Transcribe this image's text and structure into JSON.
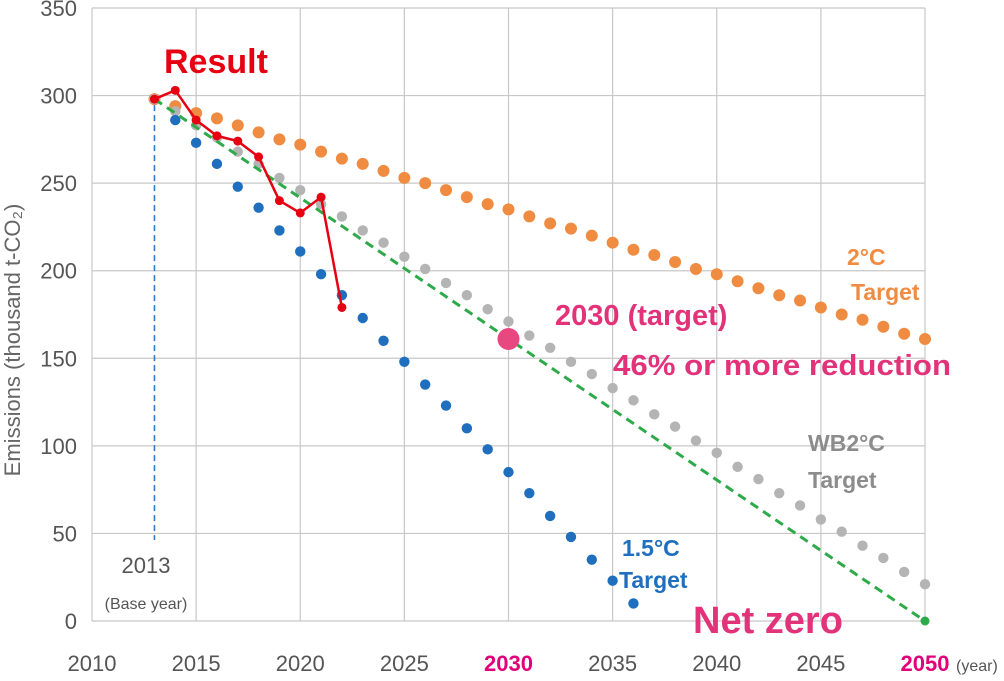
{
  "chart_data": {
    "type": "line",
    "ylabel": "Emissions (thousand t-CO₂)",
    "x_unit": "(year)",
    "xlim": [
      2010,
      2050
    ],
    "ylim": [
      0,
      350
    ],
    "x_ticks": [
      "2010",
      "2015",
      "2020",
      "2025",
      "2030",
      "2035",
      "2040",
      "2045",
      "2050"
    ],
    "x_ticks_highlighted": [
      "2030",
      "2050"
    ],
    "y_ticks": [
      "0",
      "50",
      "100",
      "150",
      "200",
      "250",
      "300",
      "350"
    ],
    "grid": "vertical and horizontal",
    "series": [
      {
        "name": "Result",
        "color": "#e60012",
        "style": "solid line with markers",
        "x": [
          2013,
          2014,
          2015,
          2016,
          2017,
          2018,
          2019,
          2020,
          2021,
          2022
        ],
        "y": [
          298,
          303,
          286,
          277,
          274,
          265,
          240,
          233,
          242,
          179
        ]
      },
      {
        "name": "2°C Target",
        "color": "#f08c42",
        "style": "dotted",
        "x": [
          2013,
          2014,
          2015,
          2016,
          2017,
          2018,
          2019,
          2020,
          2021,
          2022,
          2023,
          2024,
          2025,
          2026,
          2027,
          2028,
          2029,
          2030,
          2031,
          2032,
          2033,
          2034,
          2035,
          2036,
          2037,
          2038,
          2039,
          2040,
          2041,
          2042,
          2043,
          2044,
          2045,
          2046,
          2047,
          2048,
          2049,
          2050
        ],
        "y": [
          298,
          294,
          290,
          287,
          283,
          279,
          275,
          272,
          268,
          264,
          261,
          257,
          253,
          250,
          246,
          242,
          238,
          235,
          231,
          227,
          224,
          220,
          216,
          212,
          209,
          205,
          201,
          198,
          194,
          190,
          186,
          183,
          179,
          175,
          172,
          168,
          164,
          161
        ]
      },
      {
        "name": "WB2°C Target",
        "color": "#b4b4b4",
        "style": "dotted",
        "x": [
          2013,
          2014,
          2015,
          2016,
          2017,
          2018,
          2019,
          2020,
          2021,
          2022,
          2023,
          2024,
          2025,
          2026,
          2027,
          2028,
          2029,
          2030,
          2031,
          2032,
          2033,
          2034,
          2035,
          2036,
          2037,
          2038,
          2039,
          2040,
          2041,
          2042,
          2043,
          2044,
          2045,
          2046,
          2047,
          2048,
          2049,
          2050
        ],
        "y": [
          298,
          291,
          283,
          276,
          268,
          261,
          253,
          246,
          238,
          231,
          223,
          216,
          208,
          201,
          193,
          186,
          178,
          171,
          163,
          156,
          148,
          141,
          133,
          126,
          118,
          111,
          103,
          96,
          88,
          81,
          73,
          66,
          58,
          51,
          43,
          36,
          28,
          21
        ]
      },
      {
        "name": "1.5°C Target",
        "color": "#1f6fbe",
        "style": "dotted",
        "x": [
          2014,
          2015,
          2016,
          2017,
          2018,
          2019,
          2020,
          2021,
          2022,
          2023,
          2024,
          2025,
          2026,
          2027,
          2028,
          2029,
          2030,
          2031,
          2032,
          2033,
          2034,
          2035,
          2036
        ],
        "y": [
          286,
          273,
          261,
          248,
          236,
          223,
          211,
          198,
          186,
          173,
          160,
          148,
          135,
          123,
          110,
          98,
          85,
          73,
          60,
          48,
          35,
          23,
          10
        ]
      },
      {
        "name": "Net zero",
        "color": "#2eaa4a",
        "style": "dashed",
        "x": [
          2013,
          2050
        ],
        "y": [
          298,
          0
        ]
      }
    ],
    "base_year": {
      "x": 2013,
      "label": "2013",
      "sublabel": "(Base year)"
    },
    "target_point": {
      "x": 2030,
      "y": 161,
      "color": "#e8477f"
    },
    "annotations": {
      "result": "Result",
      "target_2c_line1": "2°C",
      "target_2c_line2": "Target",
      "target_wb2c_line1": "WB2°C",
      "target_wb2c_line2": "Target",
      "target_15c_line1": "1.5°C",
      "target_15c_line2": "Target",
      "target_2030_line1": "2030 (target)",
      "target_2030_line2": "46% or more reduction",
      "net_zero": "Net zero"
    },
    "colors": {
      "result": "#e60012",
      "target_2c": "#f08c42",
      "target_wb2c": "#8c8c8c",
      "target_15c": "#1f6fbe",
      "net_zero": "#2eaa4a",
      "pink": "#e2337a",
      "highlight_tick": "#e2007a",
      "base_line": "#2b7cc9",
      "grid": "#c8c8c8"
    }
  }
}
